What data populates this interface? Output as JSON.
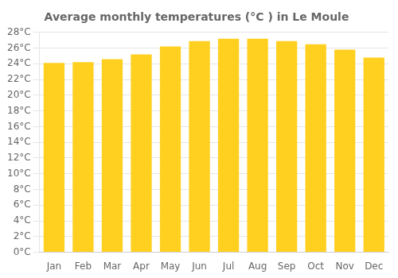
{
  "chart_data": {
    "type": "bar",
    "title": "Average monthly temperatures (°C ) in Le Moule",
    "categories": [
      "Jan",
      "Feb",
      "Mar",
      "Apr",
      "May",
      "Jun",
      "Jul",
      "Aug",
      "Sep",
      "Oct",
      "Nov",
      "Dec"
    ],
    "values": [
      24.1,
      24.2,
      24.6,
      25.2,
      26.2,
      26.9,
      27.2,
      27.2,
      26.9,
      26.5,
      25.8,
      24.8
    ],
    "color": "#FFD020",
    "ylim": [
      0,
      28
    ],
    "yticks": [
      {
        "value": 0,
        "label": "0°C"
      },
      {
        "value": 2,
        "label": "2°C"
      },
      {
        "value": 4,
        "label": "4°C"
      },
      {
        "value": 6,
        "label": "6°C"
      },
      {
        "value": 8,
        "label": "8°C"
      },
      {
        "value": 10,
        "label": "10°C"
      },
      {
        "value": 12,
        "label": "12°C"
      },
      {
        "value": 14,
        "label": "14°C"
      },
      {
        "value": 16,
        "label": "16°C"
      },
      {
        "value": 18,
        "label": "18°C"
      },
      {
        "value": 20,
        "label": "20°C"
      },
      {
        "value": 22,
        "label": "22°C"
      },
      {
        "value": 24,
        "label": "24°C"
      },
      {
        "value": 26,
        "label": "26°C"
      },
      {
        "value": 28,
        "label": "28°C"
      }
    ],
    "grid": true
  }
}
